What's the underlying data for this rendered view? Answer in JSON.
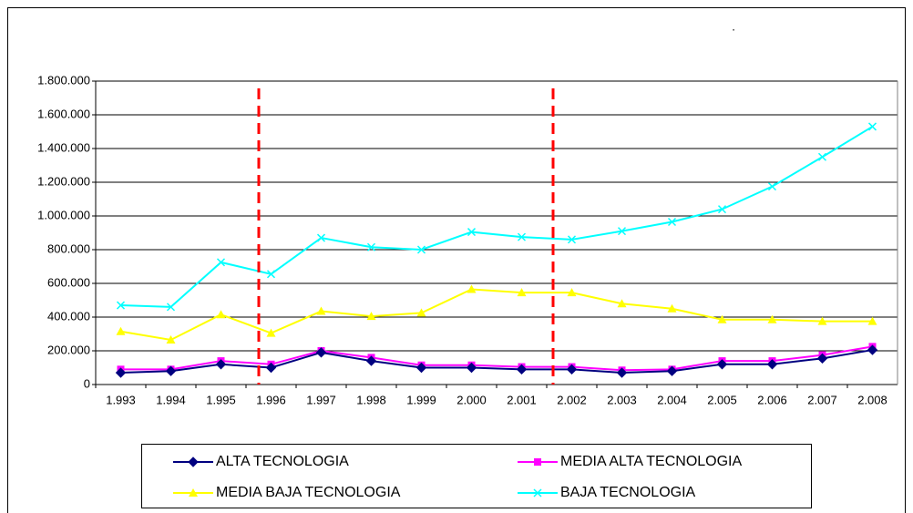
{
  "chart_data": {
    "type": "line",
    "annotation": ".",
    "categories": [
      "1.993",
      "1.994",
      "1.995",
      "1.996",
      "1.997",
      "1.998",
      "1.999",
      "2.000",
      "2.001",
      "2.002",
      "2.003",
      "2.004",
      "2.005",
      "2.006",
      "2.007",
      "2.008"
    ],
    "series": [
      {
        "name": "ALTA TECNOLOGIA",
        "color": "#000080",
        "marker": "diamond",
        "values": [
          70000,
          80000,
          120000,
          100000,
          190000,
          140000,
          100000,
          100000,
          90000,
          90000,
          70000,
          80000,
          120000,
          120000,
          155000,
          205000
        ]
      },
      {
        "name": "MEDIA ALTA TECNOLOGIA",
        "color": "#ff00ff",
        "marker": "square",
        "values": [
          90000,
          90000,
          140000,
          120000,
          200000,
          160000,
          115000,
          115000,
          105000,
          105000,
          85000,
          90000,
          140000,
          140000,
          175000,
          225000
        ]
      },
      {
        "name": "MEDIA BAJA TECNOLOGIA",
        "color": "#ffff00",
        "marker": "triangle",
        "values": [
          315000,
          265000,
          415000,
          305000,
          435000,
          405000,
          425000,
          565000,
          545000,
          545000,
          480000,
          450000,
          385000,
          385000,
          375000,
          375000
        ]
      },
      {
        "name": "BAJA TECNOLOGIA",
        "color": "#00ffff",
        "marker": "x",
        "values": [
          470000,
          460000,
          725000,
          655000,
          870000,
          815000,
          800000,
          905000,
          875000,
          860000,
          910000,
          965000,
          1040000,
          1175000,
          1350000,
          1530000
        ]
      }
    ],
    "ylim": [
      0,
      1800000
    ],
    "yticks": [
      0,
      {
        "value": 200000,
        "label": "200.000"
      },
      {
        "value": 400000,
        "label": "400.000"
      },
      {
        "value": 600000,
        "label": "600.000"
      },
      {
        "value": 800000,
        "label": "800.000"
      },
      {
        "value": 1000000,
        "label": "1.000.000"
      },
      {
        "value": 1200000,
        "label": "1.200.000"
      },
      {
        "value": 1400000,
        "label": "1.400.000"
      },
      {
        "value": 1600000,
        "label": "1.600.000"
      },
      {
        "value": 1800000,
        "label": "1.800.000"
      }
    ],
    "grid": true,
    "legend": "bottom"
  }
}
